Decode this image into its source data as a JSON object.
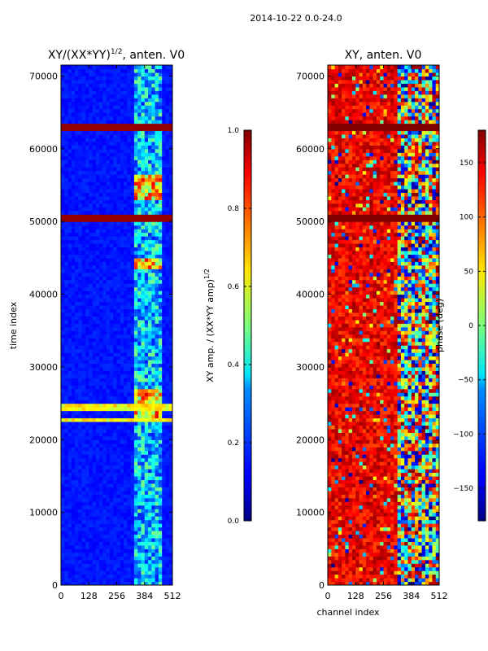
{
  "figure": {
    "suptitle": "2014-10-22 0.0-24.0"
  },
  "chart_data": [
    {
      "type": "heatmap",
      "title": "XY/(XX*YY)^{1/2}, anten. V0",
      "title_main": "XY/(XX*YY)",
      "title_sup": "1/2",
      "title_tail": ", anten. V0",
      "xlabel": "",
      "ylabel": "time index",
      "xlim": [
        0,
        512
      ],
      "ylim": [
        0,
        71500
      ],
      "xticks": [
        0,
        128,
        256,
        384,
        512
      ],
      "yticks": [
        0,
        10000,
        20000,
        30000,
        40000,
        50000,
        60000,
        70000
      ],
      "colorbar": {
        "label": "XY amp. / (XX*YY amp)^{1/2}",
        "label_main": "XY amp. / (XX*YY amp)",
        "label_sup": "1/2",
        "range": [
          0.0,
          1.0
        ],
        "ticks": [
          0.0,
          0.2,
          0.4,
          0.6,
          0.8,
          1.0
        ],
        "tick_labels": [
          "0.0",
          "0.2",
          "0.4",
          "0.6",
          "0.8",
          "1.0"
        ],
        "colormap": "jet"
      },
      "features": {
        "background_value": 0.12,
        "bright_channel_band": [
          330,
          470
        ],
        "saturated_rows": [
          [
            50200,
            50900
          ],
          [
            62400,
            63700
          ]
        ],
        "bright_rows": [
          [
            22500,
            23200
          ],
          [
            24200,
            24900
          ]
        ],
        "hot_blocks": [
          [
            23000,
            27000,
            330,
            470
          ],
          [
            43500,
            45000,
            330,
            470
          ],
          [
            53000,
            56500,
            330,
            470
          ]
        ]
      }
    },
    {
      "type": "heatmap",
      "title": "XY, anten. V0",
      "xlabel": "channel index",
      "ylabel": "",
      "xlim": [
        0,
        512
      ],
      "ylim": [
        0,
        71500
      ],
      "xticks": [
        0,
        128,
        256,
        384,
        512
      ],
      "yticks": [
        0,
        10000,
        20000,
        30000,
        40000,
        50000,
        60000,
        70000
      ],
      "colorbar": {
        "label": "phase (deg)",
        "range": [
          -180,
          180
        ],
        "ticks": [
          -150,
          -100,
          -50,
          0,
          50,
          100,
          150
        ],
        "tick_labels": [
          "−150",
          "−100",
          "−50",
          "0",
          "50",
          "100",
          "150"
        ],
        "colormap": "jet"
      },
      "features": {
        "dominant_phase_deg": 140,
        "noisy_channel_band": [
          320,
          512
        ],
        "saturated_rows": [
          [
            50200,
            50900
          ],
          [
            62400,
            63700
          ]
        ]
      }
    }
  ]
}
